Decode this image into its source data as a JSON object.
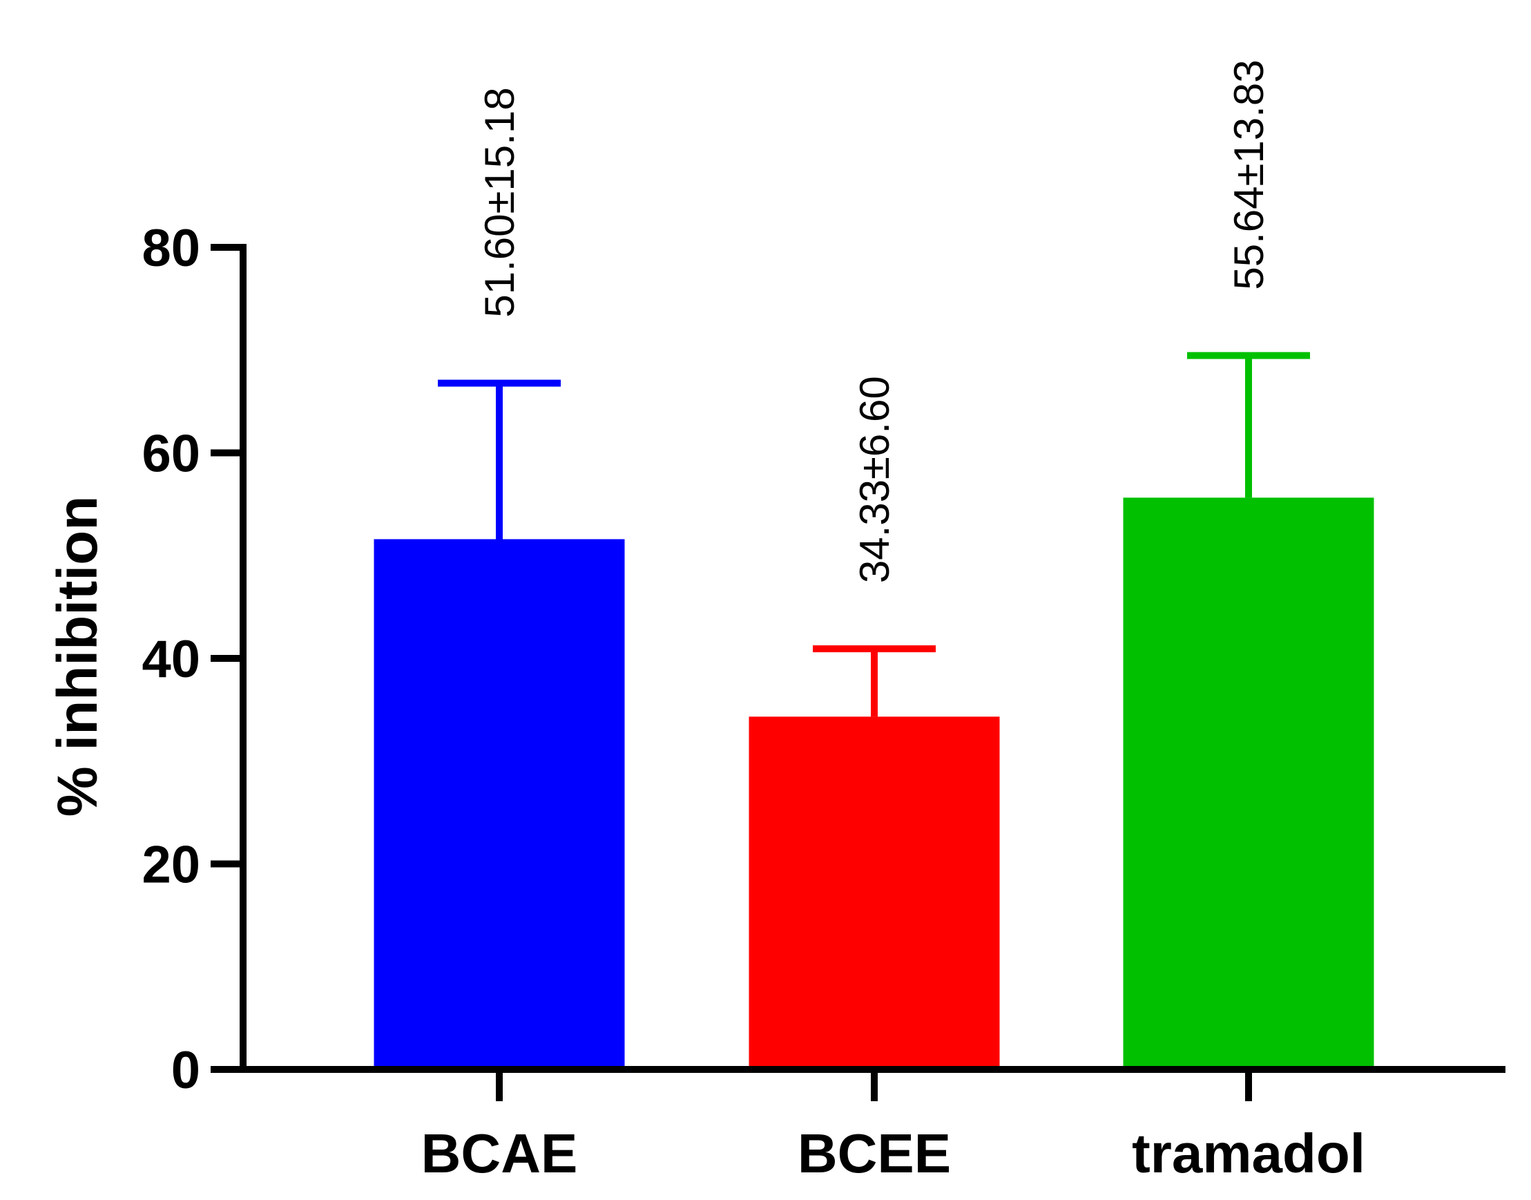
{
  "chart_data": {
    "type": "bar",
    "title": "",
    "xlabel": "",
    "ylabel": "% inhibition",
    "ylim": [
      0,
      80
    ],
    "yticks": [
      0,
      20,
      40,
      60,
      80
    ],
    "categories": [
      "BCAE",
      "BCEE",
      "tramadol"
    ],
    "values": [
      51.6,
      34.33,
      55.64
    ],
    "errors": [
      15.18,
      6.6,
      13.83
    ],
    "data_labels": [
      "51.60±15.18",
      "34.33±6.60",
      "55.64±13.83"
    ],
    "colors": [
      "#0000ff",
      "#ff0000",
      "#00c000"
    ],
    "grid": false
  }
}
